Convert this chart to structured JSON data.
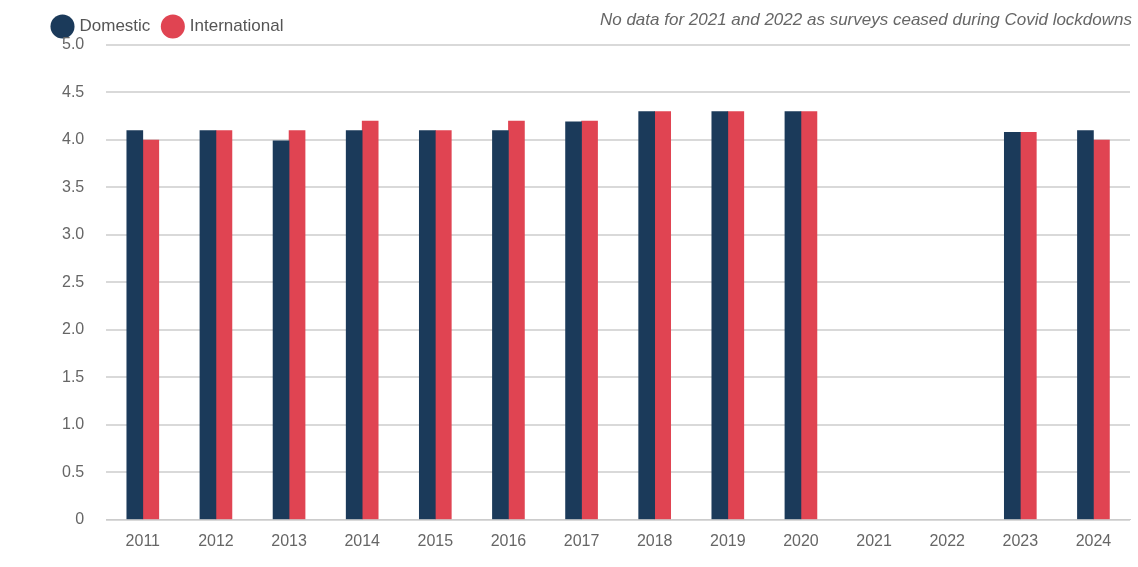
{
  "chart_data": {
    "type": "bar",
    "categories": [
      "2011",
      "2012",
      "2013",
      "2014",
      "2015",
      "2016",
      "2017",
      "2018",
      "2019",
      "2020",
      "2021",
      "2022",
      "2023",
      "2024"
    ],
    "series": [
      {
        "name": "Domestic",
        "color": "#1b3a5a",
        "values": [
          4.1,
          4.1,
          3.99,
          4.1,
          4.1,
          4.1,
          4.19,
          4.3,
          4.3,
          4.3,
          null,
          null,
          4.08,
          4.1
        ]
      },
      {
        "name": "International",
        "color": "#e04452",
        "values": [
          4.0,
          4.1,
          4.1,
          4.2,
          4.1,
          4.2,
          4.2,
          4.3,
          4.3,
          4.3,
          null,
          null,
          4.08,
          4.0
        ]
      }
    ],
    "ylim": [
      0,
      5
    ],
    "yticks": [
      {
        "value": 0,
        "label": "0"
      },
      {
        "value": 0.5,
        "label": "0.5"
      },
      {
        "value": 1,
        "label": "1.0"
      },
      {
        "value": 1.5,
        "label": "1.5"
      },
      {
        "value": 2,
        "label": "2.0"
      },
      {
        "value": 2.5,
        "label": "2.5"
      },
      {
        "value": 3,
        "label": "3.0"
      },
      {
        "value": 3.5,
        "label": "3.5"
      },
      {
        "value": 4,
        "label": "4.0"
      },
      {
        "value": 4.5,
        "label": "4.5"
      },
      {
        "value": 5,
        "label": "5.0"
      }
    ],
    "grid": "y",
    "legend": "top left",
    "annotations": [
      "No data for 2021 and 2022 as surveys ceased during Covid lockdowns"
    ]
  }
}
